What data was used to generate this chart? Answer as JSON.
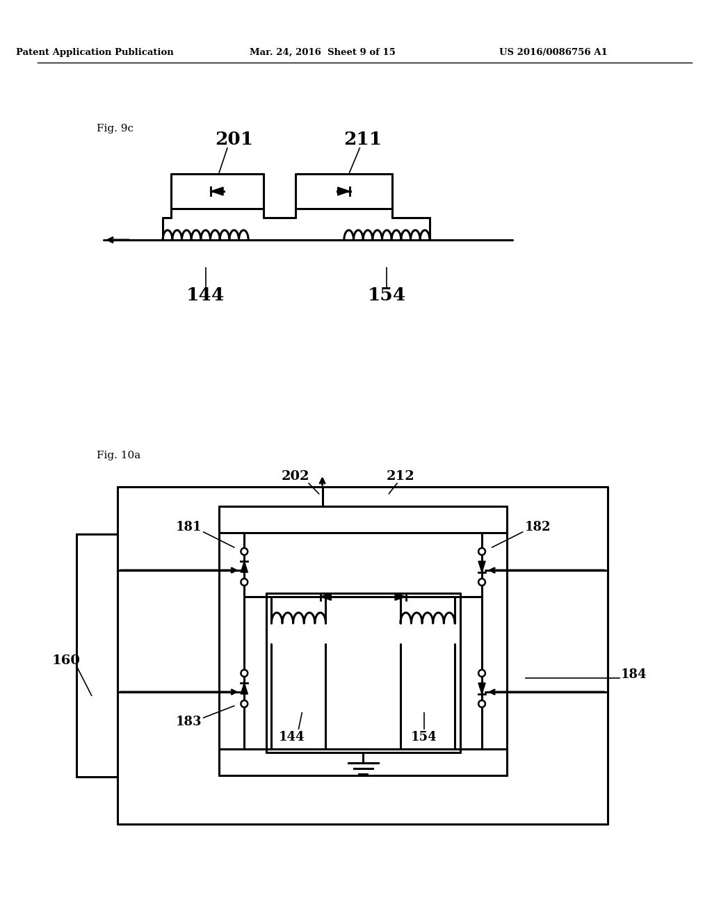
{
  "bg_color": "#ffffff",
  "header_left": "Patent Application Publication",
  "header_mid": "Mar. 24, 2016  Sheet 9 of 15",
  "header_right": "US 2016/0086756 A1",
  "fig9c_label": "Fig. 9c",
  "fig10a_label": "Fig. 10a",
  "label_201": "201",
  "label_211": "211",
  "label_144_top": "144",
  "label_154_top": "154",
  "label_202": "202",
  "label_212": "212",
  "label_181": "181",
  "label_182": "182",
  "label_183": "183",
  "label_184": "184",
  "label_160": "160",
  "label_144_bot": "144",
  "label_154_bot": "154"
}
